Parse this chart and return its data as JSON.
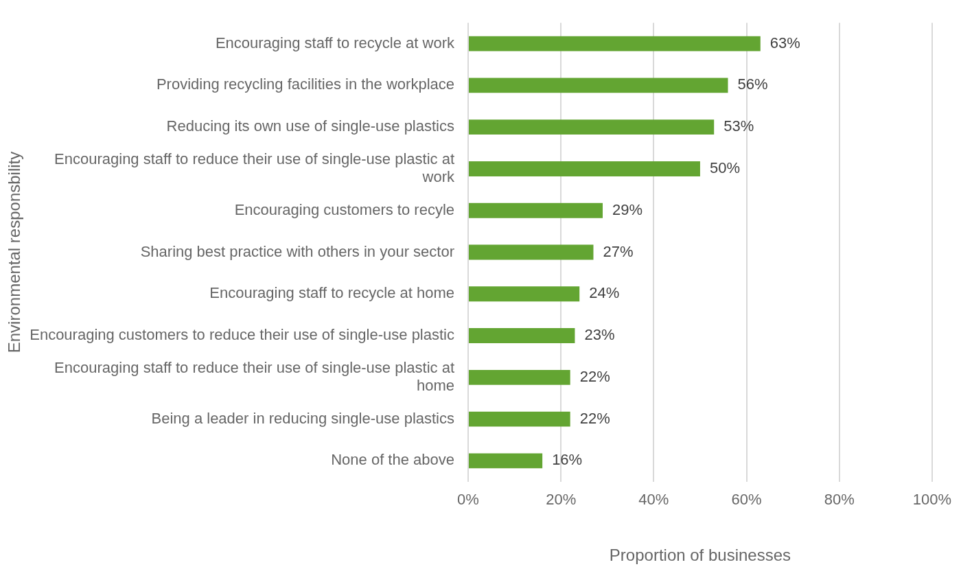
{
  "chart_data": {
    "type": "bar",
    "orientation": "horizontal",
    "xlabel": "Proportion of businesses",
    "ylabel": "Environmental responsbility",
    "categories": [
      "Encouraging staff to recycle at work",
      "Providing recycling facilities in the workplace",
      "Reducing its own use of single-use plastics",
      "Encouraging staff to reduce their use of single-use plastic at work",
      "Encouraging customers to recyle",
      "Sharing best practice with others in your sector",
      "Encouraging staff to recycle at home",
      "Encouraging customers to reduce their use of single-use plastic",
      "Encouraging staff to reduce their use of single-use plastic at home",
      "Being a leader in reducing single-use plastics",
      "None of the above"
    ],
    "values": [
      63,
      56,
      53,
      50,
      29,
      27,
      24,
      23,
      22,
      22,
      16
    ],
    "value_labels": [
      "63%",
      "56%",
      "53%",
      "50%",
      "29%",
      "27%",
      "24%",
      "23%",
      "22%",
      "22%",
      "16%"
    ],
    "color": "#63a532",
    "xlim": [
      0,
      100
    ],
    "xticks": [
      {
        "value": 0,
        "label": "0%"
      },
      {
        "value": 20,
        "label": "20%"
      },
      {
        "value": 40,
        "label": "40%"
      },
      {
        "value": 60,
        "label": "60%"
      },
      {
        "value": 80,
        "label": "80%"
      },
      {
        "value": 100,
        "label": "100%"
      }
    ],
    "grid": "x",
    "legend": false
  }
}
